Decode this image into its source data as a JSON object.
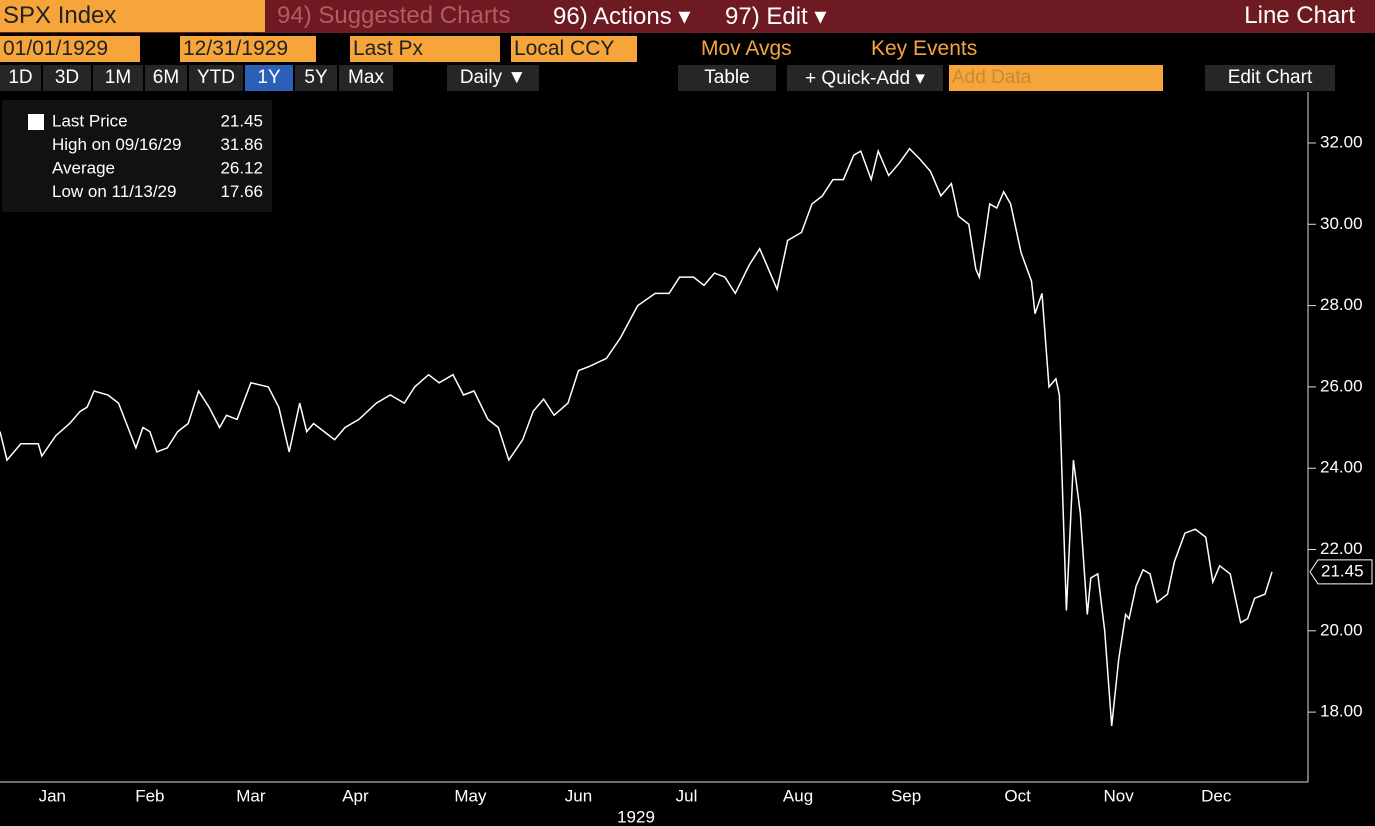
{
  "toolbar": {
    "ticker": "SPX Index",
    "suggested": "94) Suggested Charts",
    "actions": "96) Actions ▾",
    "edit": "97) Edit ▾",
    "chart_type": "Line Chart"
  },
  "controls": {
    "start": "01/01/1929",
    "end": "12/31/1929",
    "field": "Last Px",
    "currency": "Local CCY",
    "mov_avgs": "Mov Avgs",
    "key_events": "Key Events"
  },
  "ranges": [
    "1D",
    "3D",
    "1M",
    "6M",
    "YTD",
    "1Y",
    "5Y",
    "Max"
  ],
  "frequency": "Daily ▼",
  "table": "Table",
  "quick_add": "+ Quick-Add ▾",
  "add_data": "Add Data",
  "edit_chart": "Edit Chart",
  "chart_data": {
    "type": "line",
    "color": "#ffffff",
    "x_label": "1929",
    "legend": [
      {
        "label": "Last Price",
        "value": 21.45
      },
      {
        "label": "High on 09/16/29",
        "value": 31.86
      },
      {
        "label": "Average",
        "value": 26.12
      },
      {
        "label": "Low on 11/13/29",
        "value": 17.66
      }
    ],
    "last_value": 21.45,
    "x": [
      0,
      2,
      6,
      11,
      12,
      16,
      20,
      23,
      25,
      27,
      31,
      34,
      39,
      41,
      43,
      45,
      48,
      51,
      54,
      57,
      60,
      63,
      65,
      68,
      72,
      77,
      80,
      83,
      86,
      88,
      90,
      93,
      96,
      99,
      103,
      108,
      112,
      116,
      119,
      123,
      126,
      130,
      133,
      136,
      140,
      143,
      146,
      150,
      153,
      156,
      159,
      163,
      166,
      169,
      174,
      178,
      183,
      188,
      192,
      195,
      199,
      202,
      205,
      208,
      211,
      215,
      218,
      220,
      223,
      226,
      230,
      233,
      236,
      239,
      242,
      245,
      247,
      250,
      252,
      255,
      258,
      261,
      264,
      267,
      270,
      273,
      275,
      278,
      280,
      281,
      284,
      286,
      288,
      290,
      293,
      296,
      297,
      299,
      301,
      303,
      304,
      306,
      308,
      310,
      312,
      313,
      315,
      317,
      319,
      321,
      323,
      324,
      326,
      328,
      330,
      332,
      335,
      337,
      340,
      343,
      346,
      348,
      350,
      353,
      356,
      358,
      360,
      363,
      365
    ],
    "values": [
      24.9,
      24.2,
      24.6,
      24.6,
      24.3,
      24.8,
      25.1,
      25.4,
      25.5,
      25.9,
      25.8,
      25.6,
      24.5,
      25.0,
      24.9,
      24.4,
      24.5,
      24.9,
      25.1,
      25.9,
      25.5,
      25.0,
      25.3,
      25.2,
      26.1,
      26.0,
      25.5,
      24.4,
      25.6,
      24.9,
      25.1,
      24.9,
      24.7,
      25.0,
      25.2,
      25.6,
      25.8,
      25.6,
      26.0,
      26.3,
      26.1,
      26.3,
      25.8,
      25.9,
      25.2,
      25.0,
      24.2,
      24.7,
      25.4,
      25.7,
      25.3,
      25.6,
      26.4,
      26.5,
      26.7,
      27.2,
      28.0,
      28.3,
      28.3,
      28.7,
      28.7,
      28.5,
      28.8,
      28.7,
      28.3,
      29.0,
      29.4,
      29.0,
      28.4,
      29.6,
      29.8,
      30.5,
      30.7,
      31.1,
      31.1,
      31.7,
      31.8,
      31.1,
      31.8,
      31.2,
      31.5,
      31.86,
      31.6,
      31.3,
      30.7,
      31.0,
      30.2,
      30.0,
      28.9,
      28.7,
      30.5,
      30.4,
      30.8,
      30.5,
      29.3,
      28.6,
      27.8,
      28.3,
      26.0,
      26.2,
      25.8,
      20.5,
      24.2,
      22.9,
      20.4,
      21.3,
      21.4,
      20.0,
      17.66,
      19.3,
      20.4,
      20.3,
      21.1,
      21.5,
      21.4,
      20.7,
      20.9,
      21.7,
      22.4,
      22.5,
      22.3,
      21.2,
      21.6,
      21.4,
      20.2,
      20.3,
      20.8,
      20.9,
      21.45
    ],
    "xlim": [
      0,
      365
    ],
    "xticks": [
      {
        "value": 15,
        "label": "Jan"
      },
      {
        "value": 43,
        "label": "Feb"
      },
      {
        "value": 72,
        "label": "Mar"
      },
      {
        "value": 102,
        "label": "Apr"
      },
      {
        "value": 135,
        "label": "May"
      },
      {
        "value": 166,
        "label": "Jun"
      },
      {
        "value": 197,
        "label": "Jul"
      },
      {
        "value": 229,
        "label": "Aug"
      },
      {
        "value": 260,
        "label": "Sep"
      },
      {
        "value": 292,
        "label": "Oct"
      },
      {
        "value": 321,
        "label": "Nov"
      },
      {
        "value": 349,
        "label": "Dec"
      }
    ],
    "ylim": [
      16.33,
      33.18
    ],
    "yticks": [
      {
        "value": 18,
        "label": "18.00"
      },
      {
        "value": 20,
        "label": "20.00"
      },
      {
        "value": 22,
        "label": "22.00"
      },
      {
        "value": 24,
        "label": "24.00"
      },
      {
        "value": 26,
        "label": "26.00"
      },
      {
        "value": 28,
        "label": "28.00"
      },
      {
        "value": 30,
        "label": "30.00"
      },
      {
        "value": 32,
        "label": "32.00"
      }
    ]
  }
}
